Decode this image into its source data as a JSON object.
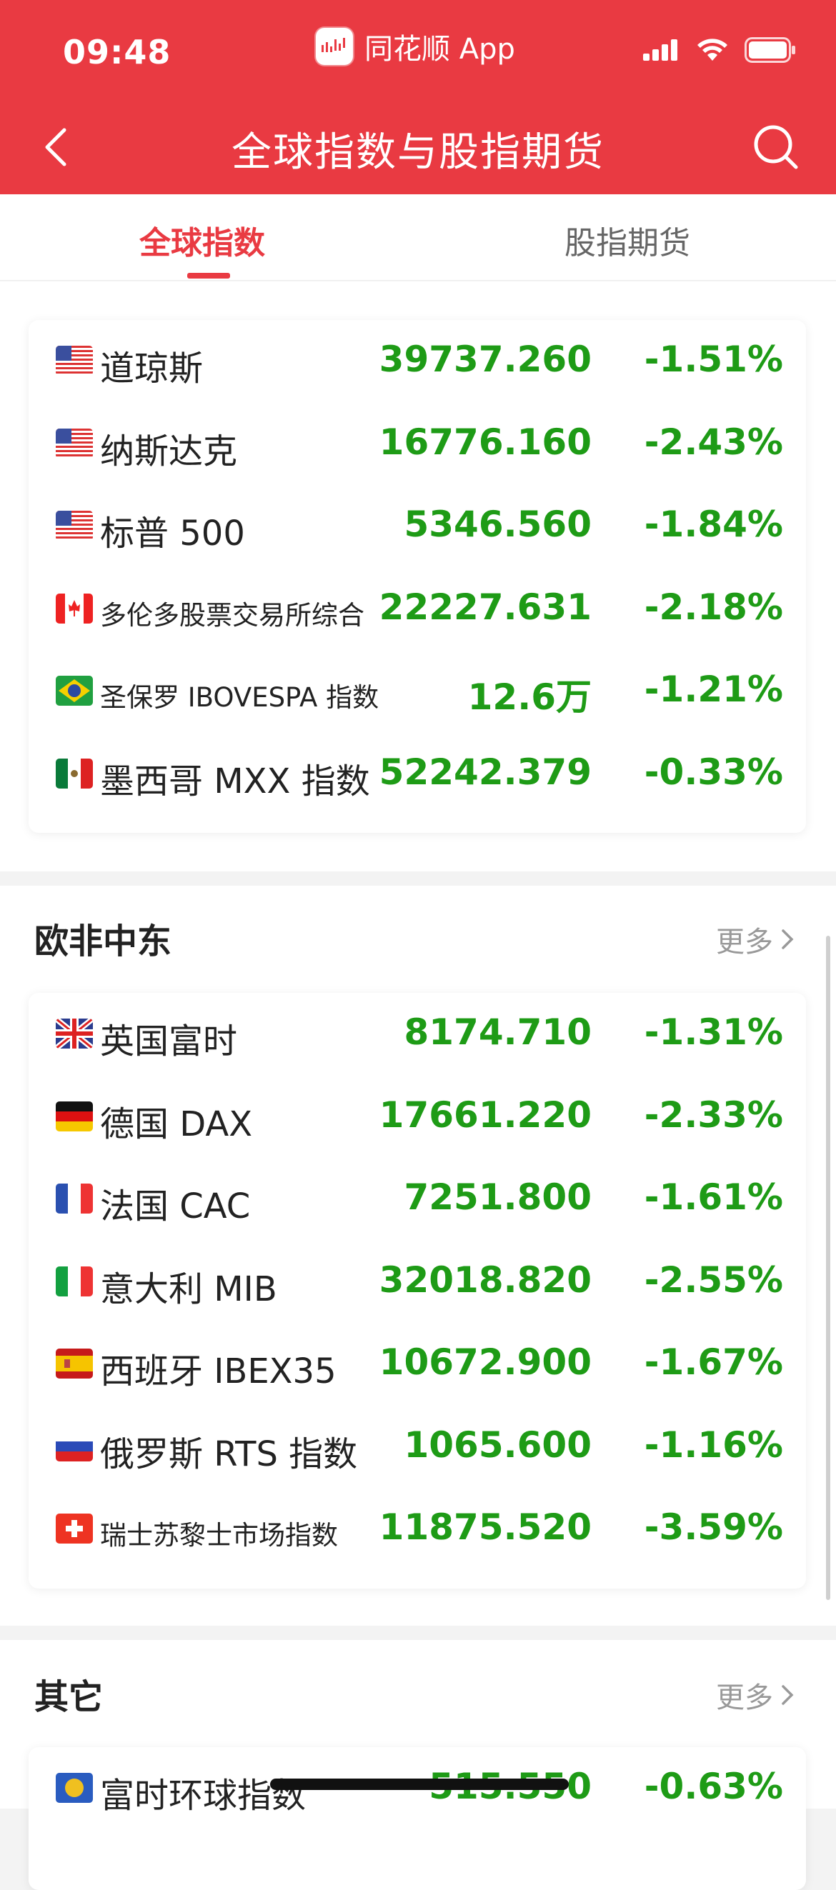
{
  "status_bar": {
    "time": "09:48",
    "app_name": "同花顺 App"
  },
  "nav": {
    "title": "全球指数与股指期货"
  },
  "tabs": [
    {
      "label": "全球指数",
      "active": true
    },
    {
      "label": "股指期货",
      "active": false
    }
  ],
  "colors": {
    "brand_red": "#e93a42",
    "down_green": "#1e9b16"
  },
  "americas": {
    "items": [
      {
        "flag": "us",
        "name": "道琼斯",
        "value": "39737.260",
        "change": "-1.51%"
      },
      {
        "flag": "us",
        "name": "纳斯达克",
        "value": "16776.160",
        "change": "-2.43%"
      },
      {
        "flag": "us",
        "name": "标普 500",
        "value": "5346.560",
        "change": "-1.84%"
      },
      {
        "flag": "ca",
        "name": "多伦多股票交易所综合",
        "value": "22227.631",
        "change": "-2.18%",
        "small": true
      },
      {
        "flag": "br",
        "name": "圣保罗 IBOVESPA 指数",
        "value": "12.6万",
        "change": "-1.21%",
        "small": true
      },
      {
        "flag": "mx",
        "name": "墨西哥 MXX 指数",
        "value": "52242.379",
        "change": "-0.33%"
      }
    ]
  },
  "europe": {
    "title": "欧非中东",
    "more": "更多",
    "items": [
      {
        "flag": "gb",
        "name": "英国富时",
        "value": "8174.710",
        "change": "-1.31%"
      },
      {
        "flag": "de",
        "name": "德国 DAX",
        "value": "17661.220",
        "change": "-2.33%"
      },
      {
        "flag": "fr",
        "name": "法国 CAC",
        "value": "7251.800",
        "change": "-1.61%"
      },
      {
        "flag": "it",
        "name": "意大利 MIB",
        "value": "32018.820",
        "change": "-2.55%"
      },
      {
        "flag": "es",
        "name": "西班牙 IBEX35",
        "value": "10672.900",
        "change": "-1.67%"
      },
      {
        "flag": "ru",
        "name": "俄罗斯 RTS 指数",
        "value": "1065.600",
        "change": "-1.16%"
      },
      {
        "flag": "ch",
        "name": "瑞士苏黎士市场指数",
        "value": "11875.520",
        "change": "-3.59%",
        "small": true
      }
    ]
  },
  "others": {
    "title": "其它",
    "more": "更多",
    "items": [
      {
        "flag": "world",
        "name": "富时环球指数",
        "value": "515.550",
        "change": "-0.63%"
      }
    ]
  }
}
